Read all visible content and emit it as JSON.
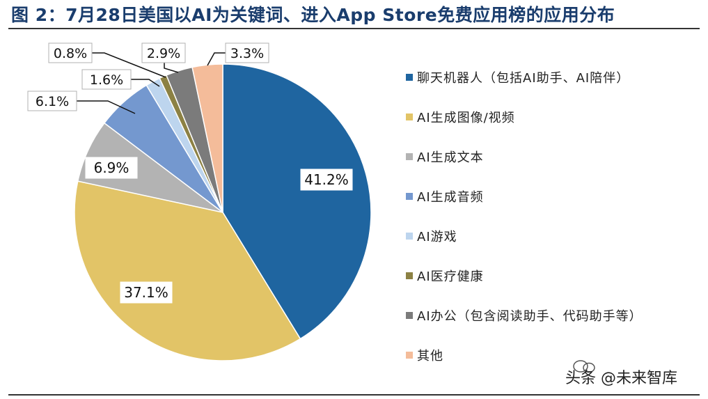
{
  "title": "图 2：7月28日美国以AI为关键词、进入App Store免费应用榜的应用分布",
  "watermark": {
    "text": "头条 @未来智库"
  },
  "chart_data": {
    "type": "pie",
    "title": "7月28日美国以AI为关键词、进入App Store免费应用榜的应用分布",
    "start_angle_deg": 0,
    "direction": "clockwise",
    "unit": "%",
    "slices": [
      {
        "label": "聊天机器人（包括AI助手、AI陪伴）",
        "value": 41.2,
        "value_label": "41.2%",
        "color": "#1f65a0",
        "label_placement": "inside"
      },
      {
        "label": "AI生成图像/视频",
        "value": 37.1,
        "value_label": "37.1%",
        "color": "#e2c467",
        "label_placement": "inside"
      },
      {
        "label": "AI生成文本",
        "value": 6.9,
        "value_label": "6.9%",
        "color": "#b3b3b3",
        "label_placement": "inside"
      },
      {
        "label": "AI生成音频",
        "value": 6.1,
        "value_label": "6.1%",
        "color": "#7498cf",
        "label_placement": "callout"
      },
      {
        "label": "AI游戏",
        "value": 1.6,
        "value_label": "1.6%",
        "color": "#bdd5ee",
        "label_placement": "callout"
      },
      {
        "label": "AI医疗健康",
        "value": 0.8,
        "value_label": "0.8%",
        "color": "#8c8144",
        "label_placement": "callout"
      },
      {
        "label": "AI办公（包含阅读助手、代码助手等）",
        "value": 2.9,
        "value_label": "2.9%",
        "color": "#7b7b7b",
        "label_placement": "callout"
      },
      {
        "label": "其他",
        "value": 3.3,
        "value_label": "3.3%",
        "color": "#f4bc9a",
        "label_placement": "callout"
      }
    ],
    "legend_position": "right"
  }
}
